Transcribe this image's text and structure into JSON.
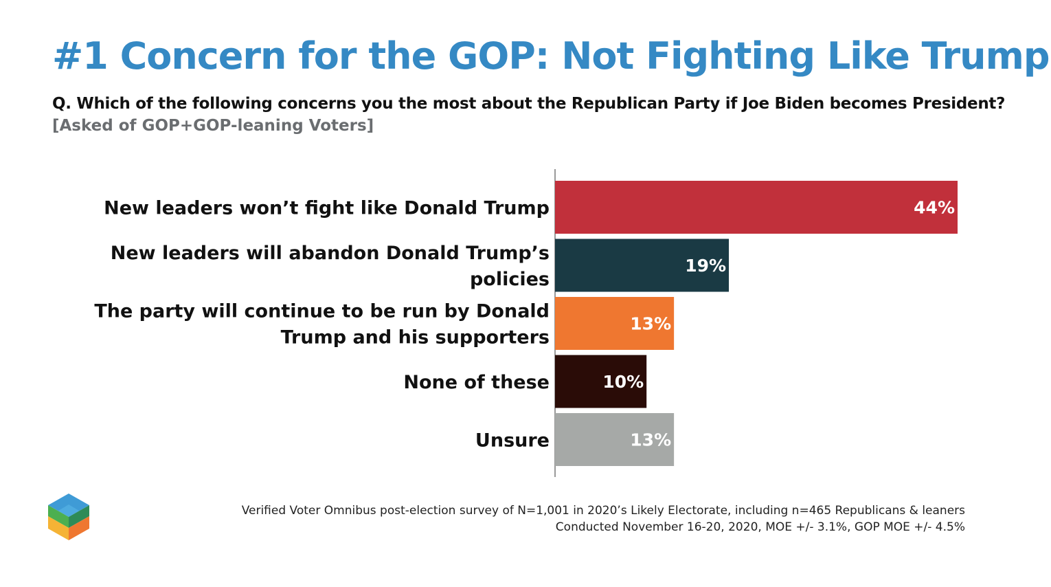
{
  "title": "#1 Concern for the GOP: Not Fighting Like Trump",
  "question": "Q. Which of the following concerns you the most about the Republican Party if Joe Biden becomes President?",
  "asked_of": "[Asked of GOP+GOP-leaning Voters]",
  "source_line1": "Verified Voter Omnibus post-election survey of N=1,001 in 2020’s Likely Electorate, including n=465 Republicans & leaners",
  "source_line2": "Conducted November 16-20, 2020, MOE +/- 3.1%, GOP MOE +/- 4.5%",
  "logo_icon": "hexagon-cube-logo-icon",
  "chart_data": {
    "type": "bar",
    "orientation": "horizontal",
    "categories": [
      [
        "New leaders won’t fight like Donald Trump"
      ],
      [
        "New leaders will abandon Donald Trump’s",
        "policies"
      ],
      [
        "The party will continue to be run by Donald",
        "Trump and his supporters"
      ],
      [
        "None of these"
      ],
      [
        "Unsure"
      ]
    ],
    "values": [
      44,
      19,
      13,
      10,
      13
    ],
    "value_labels": [
      "44%",
      "19%",
      "13%",
      "10%",
      "13%"
    ],
    "colors": [
      "#c1303b",
      "#1a3a44",
      "#ef7730",
      "#2a0c07",
      "#a6a9a7"
    ],
    "unit": "%",
    "title": "",
    "xlabel": "",
    "ylabel": "",
    "xlim": [
      0,
      44
    ],
    "grid": false,
    "legend": "none"
  }
}
